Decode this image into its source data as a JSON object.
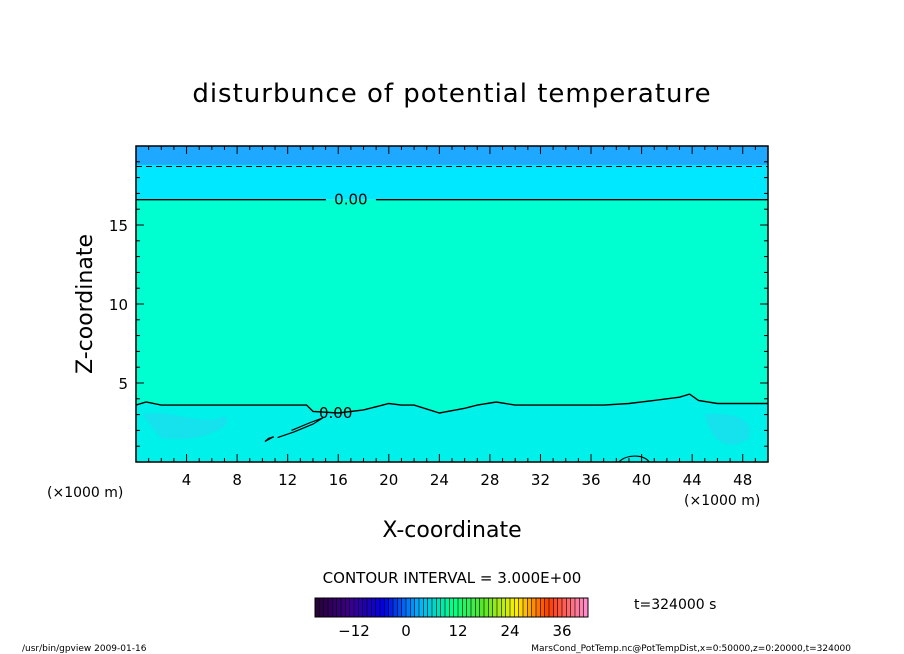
{
  "chart_data": {
    "type": "heatmap",
    "title": "disturbunce of potential temperature",
    "xlabel": "X-coordinate",
    "ylabel": "Z-coordinate",
    "x_unit_left": "(×1000 m)",
    "x_unit_right": "(×1000 m)",
    "xlim": [
      0,
      50
    ],
    "ylim": [
      0,
      20
    ],
    "x_ticks": [
      "4",
      "8",
      "12",
      "16",
      "20",
      "24",
      "28",
      "32",
      "36",
      "40",
      "44",
      "48"
    ],
    "y_ticks": [
      "5",
      "10",
      "15"
    ],
    "contour_labels": [
      {
        "text": "0.00",
        "x": 17.0,
        "z": 16.6
      },
      {
        "text": "0.00",
        "x": 15.8,
        "z": 3.1
      }
    ],
    "contour_interval_text": "CONTOUR INTERVAL = 3.000E+00",
    "time_text": "t=324000 s",
    "colorbar": {
      "range": [
        -21,
        42
      ],
      "ticks": [
        "-12",
        "0",
        "12",
        "24",
        "36"
      ]
    },
    "colors": {
      "top_band": "#1ea8ff",
      "upper_band": "#00e8ff",
      "main": "#00ffd0",
      "lower": "#00f0ea",
      "lower_patch": "#20dcf0"
    }
  },
  "footer": {
    "left": "/usr/bin/gpview   2009-01-16",
    "right": "MarsCond_PotTemp.nc@PotTempDist,x=0:50000,z=0:20000,t=324000"
  }
}
